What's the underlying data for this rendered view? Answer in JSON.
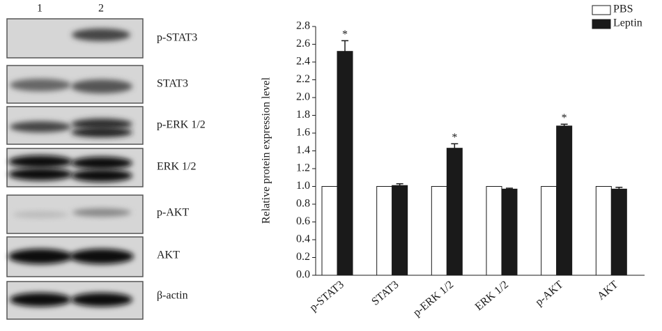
{
  "blot": {
    "lanes": [
      "1",
      "2"
    ],
    "bands": [
      "p-STAT3",
      "STAT3",
      "p-ERK 1/2",
      "ERK 1/2",
      "p-AKT",
      "AKT",
      "β-actin"
    ]
  },
  "chart_data": {
    "type": "bar",
    "y_label": "Relative protein expression level",
    "categories": [
      "p-STAT3",
      "STAT3",
      "p-ERK 1/2",
      "ERK 1/2",
      "p-AKT",
      "AKT"
    ],
    "series": [
      {
        "name": "PBS",
        "color": "#ffffff",
        "values": [
          1.0,
          1.0,
          1.0,
          1.0,
          1.0,
          1.0
        ]
      },
      {
        "name": "Leptin",
        "color": "#1a1a1a",
        "values": [
          2.52,
          1.01,
          1.43,
          0.97,
          1.68,
          0.97
        ],
        "errors": [
          0.12,
          0.02,
          0.05,
          0.01,
          0.02,
          0.02
        ],
        "significance_labels": [
          "*",
          null,
          "*",
          null,
          "*",
          null
        ]
      }
    ],
    "ylim": [
      0,
      2.8
    ],
    "yticks": [
      {
        "value": 0,
        "label": "0.0"
      },
      {
        "value": 0.2,
        "label": "0.2"
      },
      {
        "value": 0.4,
        "label": "0.4"
      },
      {
        "value": 0.6,
        "label": "0.6"
      },
      {
        "value": 0.8,
        "label": "0.8"
      },
      {
        "value": 1.0,
        "label": "1.0"
      },
      {
        "value": 1.2,
        "label": "1.2"
      },
      {
        "value": 1.4,
        "label": "1.4"
      },
      {
        "value": 1.6,
        "label": "1.6"
      },
      {
        "value": 1.8,
        "label": "1.8"
      },
      {
        "value": 2.0,
        "label": "2.0"
      },
      {
        "value": 2.2,
        "label": "2.2"
      },
      {
        "value": 2.4,
        "label": "2.4"
      },
      {
        "value": 2.6,
        "label": "2.6"
      },
      {
        "value": 2.8,
        "label": "2.8"
      }
    ],
    "grid": false,
    "legend": "top-right"
  }
}
